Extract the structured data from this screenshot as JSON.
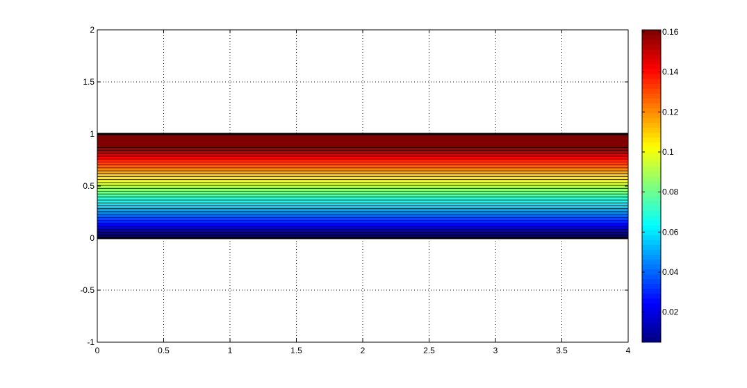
{
  "chart_data": {
    "type": "contour",
    "xlim": [
      0,
      4
    ],
    "ylim": [
      -1,
      2
    ],
    "x_ticks": [
      "0",
      "0.5",
      "1",
      "1.5",
      "2",
      "2.5",
      "3",
      "3.5",
      "4"
    ],
    "y_ticks": [
      "-1",
      "-0.5",
      "0",
      "0.5",
      "1",
      "1.5",
      "2"
    ],
    "grid": true,
    "filled_region": {
      "x": [
        0,
        4
      ],
      "y": [
        0,
        1
      ]
    },
    "field": "value increases with y, constant in x",
    "colormap": "jet",
    "clim": [
      0.005,
      0.161
    ],
    "colorbar": {
      "location": "right",
      "ticks": [
        "0.02",
        "0.04",
        "0.06",
        "0.08",
        "0.1",
        "0.12",
        "0.14",
        "0.16"
      ]
    }
  }
}
